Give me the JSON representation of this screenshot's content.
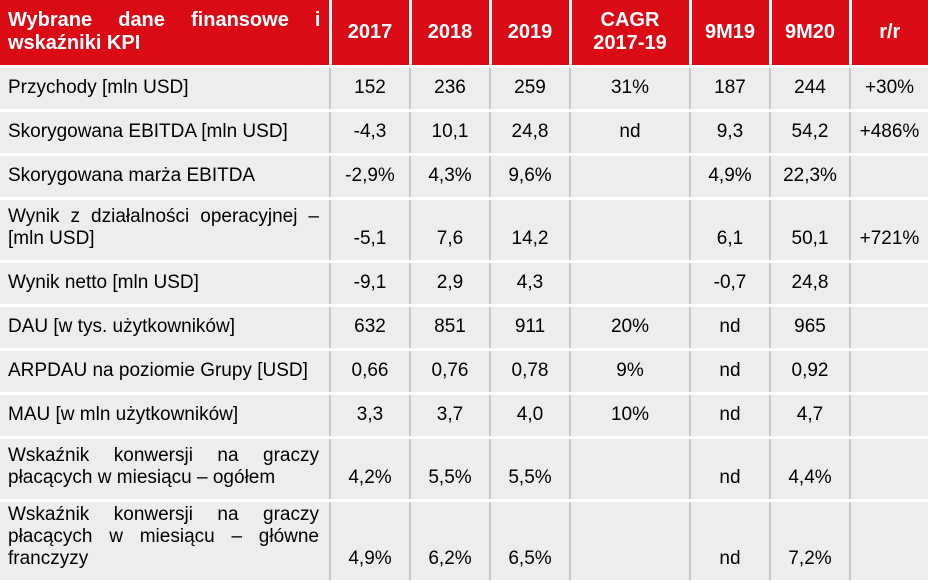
{
  "theme": {
    "header_bg": "#DA0B15",
    "header_text": "#FFFFFF",
    "row_bg": "#EDEDED",
    "grid_line": "#C8C8C8",
    "row_separator": "#FFFFFF",
    "text": "#000000"
  },
  "table": {
    "header": {
      "label": "Wybrane dane finansowe i wskaźniki KPI",
      "columns": [
        "2017",
        "2018",
        "2019",
        "CAGR 2017-19",
        "9M19",
        "9M20",
        "r/r"
      ]
    },
    "rows": [
      {
        "label": "Przychody [mln USD]",
        "values": [
          "152",
          "236",
          "259",
          "31%",
          "187",
          "244",
          "+30%"
        ]
      },
      {
        "label": "Skorygowana EBITDA [mln USD]",
        "values": [
          "-4,3",
          "10,1",
          "24,8",
          "nd",
          "9,3",
          "54,2",
          "+486%"
        ]
      },
      {
        "label": "Skorygowana marża EBITDA",
        "values": [
          "-2,9%",
          "4,3%",
          "9,6%",
          "",
          "4,9%",
          "22,3%",
          ""
        ]
      },
      {
        "label": "Wynik z działalności operacyjnej – [mln USD]",
        "values": [
          "-5,1",
          "7,6",
          "14,2",
          "",
          "6,1",
          "50,1",
          "+721%"
        ]
      },
      {
        "label": "Wynik netto [mln USD]",
        "values": [
          "-9,1",
          "2,9",
          "4,3",
          "",
          "-0,7",
          "24,8",
          ""
        ]
      },
      {
        "label": "DAU [w tys. użytkowników]",
        "values": [
          "632",
          "851",
          "911",
          "20%",
          "nd",
          "965",
          ""
        ]
      },
      {
        "label": "ARPDAU na poziomie Grupy [USD]",
        "values": [
          "0,66",
          "0,76",
          "0,78",
          "9%",
          "nd",
          "0,92",
          ""
        ]
      },
      {
        "label": "MAU [w mln użytkowników]",
        "values": [
          "3,3",
          "3,7",
          "4,0",
          "10%",
          "nd",
          "4,7",
          ""
        ]
      },
      {
        "label": "Wskaźnik konwersji na graczy płacących w miesiącu – ogółem",
        "values": [
          "4,2%",
          "5,5%",
          "5,5%",
          "",
          "nd",
          "4,4%",
          ""
        ]
      },
      {
        "label": "Wskaźnik konwersji na graczy płacących w miesiącu – główne franczyzy",
        "values": [
          "4,9%",
          "6,2%",
          "6,5%",
          "",
          "nd",
          "7,2%",
          ""
        ]
      }
    ]
  }
}
